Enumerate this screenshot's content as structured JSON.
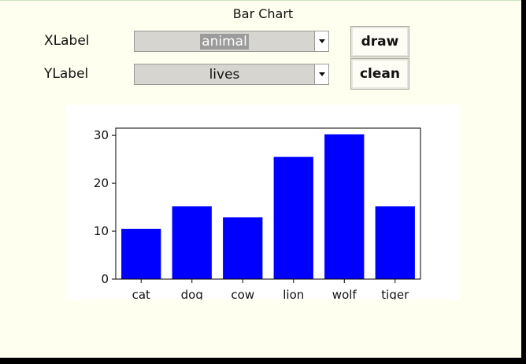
{
  "window": {
    "title": "Bar Chart"
  },
  "controls": {
    "xlabel_label": "XLabel",
    "ylabel_label": "YLabel",
    "xlabel_value": "animal",
    "ylabel_value": "lives",
    "draw_label": "draw",
    "clean_label": "clean"
  },
  "chart_data": {
    "type": "bar",
    "categories": [
      "cat",
      "dog",
      "cow",
      "lion",
      "wolf",
      "tiger"
    ],
    "values": [
      10.5,
      15.2,
      12.9,
      25.5,
      30.2,
      15.2
    ],
    "title": "",
    "xlabel": "",
    "ylabel": "",
    "ylim": [
      0,
      31.5
    ],
    "yticks": [
      0,
      10,
      20,
      30
    ],
    "bar_color": "#0000ff"
  }
}
